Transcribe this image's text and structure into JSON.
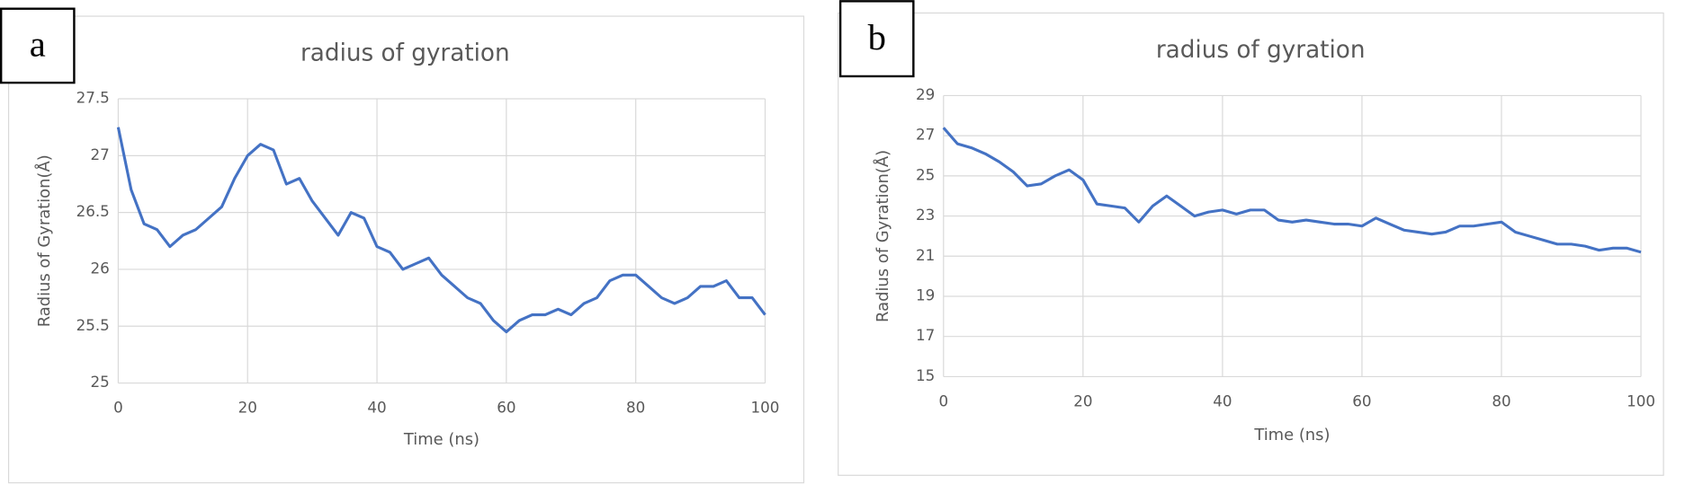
{
  "chart_data": [
    {
      "type": "line",
      "panel_label": "a",
      "title": "radius of gyration",
      "x_label": "Time (ns)",
      "y_label": "Radius of Gyration(Å)",
      "xlim": [
        0,
        100
      ],
      "xticks": [
        0,
        20,
        40,
        60,
        80,
        100
      ],
      "ylim": [
        25,
        27.5
      ],
      "yticks": [
        25,
        25.5,
        26,
        26.5,
        27,
        27.5
      ],
      "grid": true,
      "x": [
        0,
        2,
        4,
        6,
        8,
        10,
        12,
        14,
        16,
        18,
        20,
        22,
        24,
        26,
        28,
        30,
        32,
        34,
        36,
        38,
        40,
        42,
        44,
        46,
        48,
        50,
        52,
        54,
        56,
        58,
        60,
        62,
        64,
        66,
        68,
        70,
        72,
        74,
        76,
        78,
        80,
        82,
        84,
        86,
        88,
        90,
        92,
        94,
        96,
        98,
        100
      ],
      "series": [
        {
          "color": "#4472c4",
          "values": [
            27.25,
            26.7,
            26.4,
            26.35,
            26.2,
            26.3,
            26.35,
            26.45,
            26.55,
            26.8,
            27.0,
            27.1,
            27.05,
            26.75,
            26.8,
            26.6,
            26.45,
            26.3,
            26.5,
            26.45,
            26.2,
            26.15,
            26.0,
            26.05,
            26.1,
            25.95,
            25.85,
            25.75,
            25.7,
            25.55,
            25.45,
            25.55,
            25.6,
            25.6,
            25.65,
            25.6,
            25.7,
            25.75,
            25.9,
            25.95,
            25.95,
            25.85,
            25.75,
            25.7,
            25.75,
            25.85,
            25.85,
            25.9,
            25.75,
            25.75,
            25.6
          ]
        }
      ]
    },
    {
      "type": "line",
      "panel_label": "b",
      "title": "radius of gyration",
      "x_label": "Time (ns)",
      "y_label": "Radius of Gyration(Å)",
      "xlim": [
        0,
        100
      ],
      "xticks": [
        0,
        20,
        40,
        60,
        80,
        100
      ],
      "ylim": [
        15,
        29
      ],
      "yticks": [
        15,
        17,
        19,
        21,
        23,
        25,
        27,
        29
      ],
      "grid": true,
      "x": [
        0,
        2,
        4,
        6,
        8,
        10,
        12,
        14,
        16,
        18,
        20,
        22,
        24,
        26,
        28,
        30,
        32,
        34,
        36,
        38,
        40,
        42,
        44,
        46,
        48,
        50,
        52,
        54,
        56,
        58,
        60,
        62,
        64,
        66,
        68,
        70,
        72,
        74,
        76,
        78,
        80,
        82,
        84,
        86,
        88,
        90,
        92,
        94,
        96,
        98,
        100
      ],
      "series": [
        {
          "color": "#4472c4",
          "values": [
            27.4,
            26.6,
            26.4,
            26.1,
            25.7,
            25.2,
            24.5,
            24.6,
            25.0,
            25.3,
            24.8,
            23.6,
            23.5,
            23.4,
            22.7,
            23.5,
            24.0,
            23.5,
            23.0,
            23.2,
            23.3,
            23.1,
            23.3,
            23.3,
            22.8,
            22.7,
            22.8,
            22.7,
            22.6,
            22.6,
            22.5,
            22.9,
            22.6,
            22.3,
            22.2,
            22.1,
            22.2,
            22.5,
            22.5,
            22.6,
            22.7,
            22.2,
            22.0,
            21.8,
            21.6,
            21.6,
            21.5,
            21.3,
            21.4,
            21.4,
            21.2
          ]
        }
      ]
    }
  ]
}
